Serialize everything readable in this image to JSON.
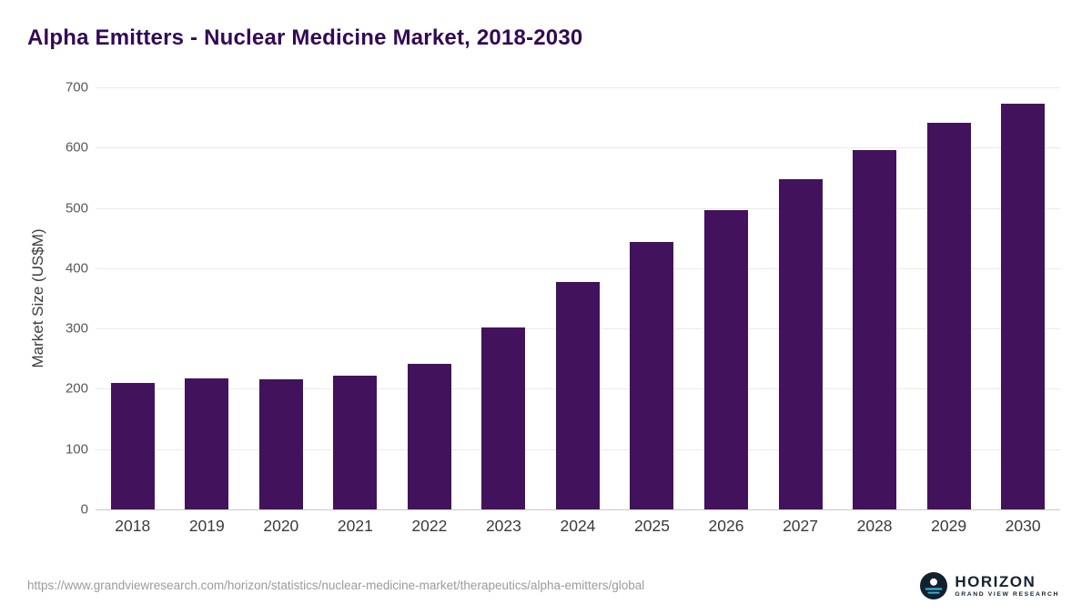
{
  "chart_data": {
    "type": "bar",
    "title": "Alpha Emitters - Nuclear Medicine Market, 2018-2030",
    "categories": [
      "2018",
      "2019",
      "2020",
      "2021",
      "2022",
      "2023",
      "2024",
      "2025",
      "2026",
      "2027",
      "2028",
      "2029",
      "2030"
    ],
    "values": [
      209,
      218,
      216,
      222,
      242,
      302,
      377,
      444,
      497,
      548,
      596,
      641,
      673
    ],
    "xlabel": "",
    "ylabel": "Market Size (US$M)",
    "ylim": [
      0,
      700
    ],
    "ytick_step": 100,
    "grid": true,
    "legend": "none",
    "bar_color": "#42135c"
  },
  "colors": {
    "title": "#330a54",
    "bar": "#42135c",
    "gridline": "#ebebeb",
    "axis_baseline": "#c9c9c9",
    "logo_circle": "#13202e",
    "logo_accent": "#2fb3d2"
  },
  "footer": {
    "source_url": "https://www.grandviewresearch.com/horizon/statistics/nuclear-medicine-market/therapeutics/alpha-emitters/global",
    "logo": {
      "name": "HORIZON",
      "subtitle": "GRAND VIEW RESEARCH"
    }
  }
}
